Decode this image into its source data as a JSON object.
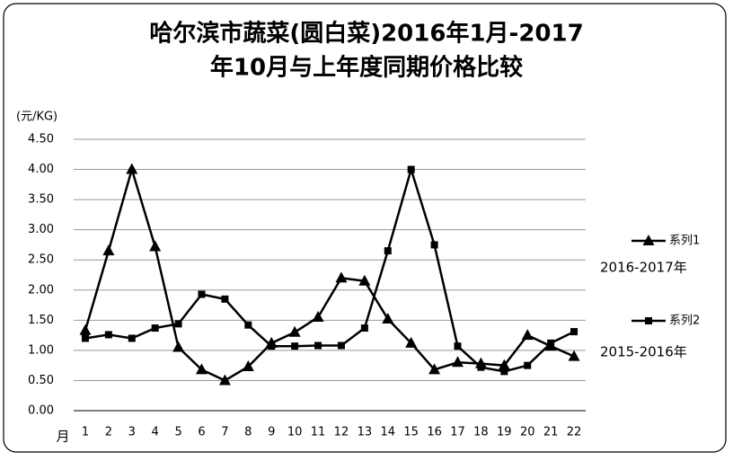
{
  "chart_data": {
    "type": "line",
    "title": [
      "哈尔滨市蔬菜(圆白菜)2016年1月-2017",
      "年10月与上年度同期价格比较"
    ],
    "y_label": "(元/KG)",
    "x_label": "月",
    "categories": [
      "1",
      "2",
      "3",
      "4",
      "5",
      "6",
      "7",
      "8",
      "9",
      "10",
      "11",
      "12",
      "13",
      "14",
      "15",
      "16",
      "17",
      "18",
      "19",
      "20",
      "21",
      "22"
    ],
    "series": [
      {
        "name": "系列1",
        "annotation": "2016-2017年",
        "marker": "triangle",
        "color": "#000000",
        "values": [
          1.33,
          2.65,
          4.0,
          2.72,
          1.05,
          0.68,
          0.5,
          0.73,
          1.12,
          1.3,
          1.55,
          2.2,
          2.15,
          1.52,
          1.12,
          0.68,
          0.8,
          0.78,
          0.75,
          1.25,
          1.07,
          0.9
        ]
      },
      {
        "name": "系列2",
        "annotation": "2015-2016年",
        "marker": "square",
        "color": "#000000",
        "values": [
          1.2,
          1.26,
          1.2,
          1.37,
          1.44,
          1.93,
          1.85,
          1.42,
          1.07,
          1.07,
          1.08,
          1.08,
          1.37,
          2.65,
          4.0,
          2.75,
          1.07,
          0.72,
          0.65,
          0.75,
          1.12,
          1.31
        ]
      }
    ],
    "ylim": [
      0,
      4.5
    ],
    "yticks": [
      {
        "value": 0,
        "label": "0.00"
      },
      {
        "value": 0.5,
        "label": "0.50"
      },
      {
        "value": 1,
        "label": "1.00"
      },
      {
        "value": 1.5,
        "label": "1.50"
      },
      {
        "value": 2,
        "label": "2.00"
      },
      {
        "value": 2.5,
        "label": "2.50"
      },
      {
        "value": 3,
        "label": "3.00"
      },
      {
        "value": 3.5,
        "label": "3.50"
      },
      {
        "value": 4,
        "label": "4.00"
      },
      {
        "value": 4.5,
        "label": "4.50"
      }
    ],
    "grid": true
  }
}
